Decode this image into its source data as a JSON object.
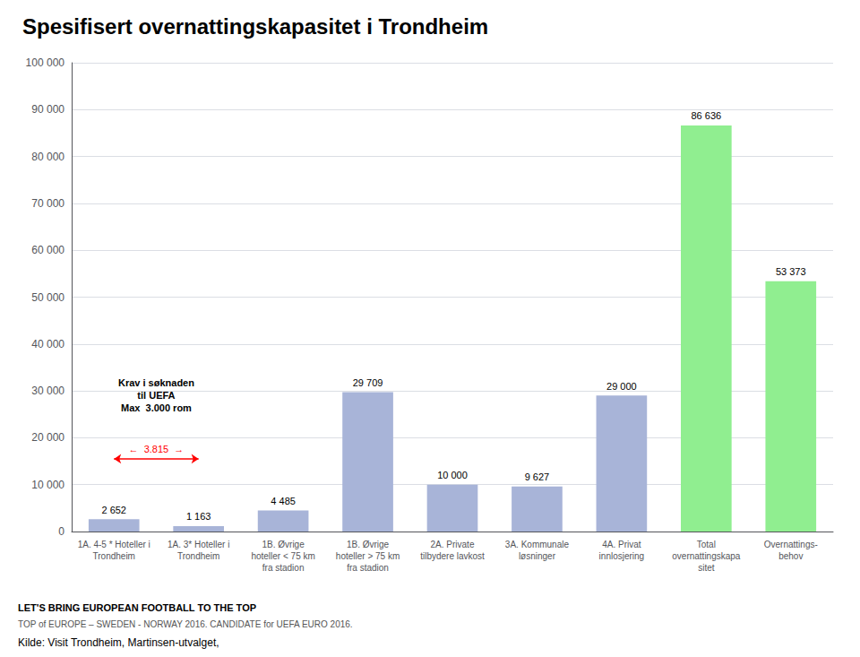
{
  "chart_data": {
    "type": "bar",
    "title": "Spesifisert overnattingskapasitet i Trondheim",
    "categories": [
      "1A. 4-5 * Hoteller i\nTrondheim",
      "1A. 3* Hoteller i\nTrondheim",
      "1B. Øvrige\nhoteller < 75 km\nfra stadion",
      "1B. Øvrige\nhoteller > 75 km\nfra stadion",
      "2A. Private\ntilbydere lavkost",
      "3A. Kommunale\nløsninger",
      "4A. Privat\ninnlosjering",
      "Total\novernattingskapa\nsitet",
      "Overnattings-\nbehov"
    ],
    "values": [
      2652,
      1163,
      4485,
      29709,
      10000,
      9627,
      29000,
      86636,
      53373
    ],
    "value_labels": [
      "2 652",
      "1 163",
      "4 485",
      "29 709",
      "10 000",
      "9 627",
      "29 000",
      "86 636",
      "53 373"
    ],
    "colors": [
      "#a8b4d8",
      "#a8b4d8",
      "#a8b4d8",
      "#a8b4d8",
      "#a8b4d8",
      "#a8b4d8",
      "#a8b4d8",
      "#90ee90",
      "#90ee90"
    ],
    "data_labels": true,
    "ylim": [
      0,
      100000
    ],
    "yticks": [
      0,
      {
        "value": 10000,
        "label": "10 000"
      },
      {
        "value": 20000,
        "label": "20 000"
      },
      {
        "value": 30000,
        "label": "30 000"
      },
      {
        "value": 40000,
        "label": "40 000"
      },
      {
        "value": 50000,
        "label": "50 000"
      },
      {
        "value": 60000,
        "label": "60 000"
      },
      {
        "value": 70000,
        "label": "70 000"
      },
      {
        "value": 80000,
        "label": "80 000"
      },
      {
        "value": 90000,
        "label": "90 000"
      },
      {
        "value": 100000,
        "label": "100 000"
      }
    ],
    "grid": true,
    "annotations": [
      {
        "text": "Krav i søknaden\ntil UEFA\nMax  3.000 rom",
        "y": 29000
      }
    ],
    "arrow": {
      "text": "←  3.815  →",
      "y": 15500,
      "color": "red"
    },
    "source": "Kilde: Visit Trondheim, Martinsen-utvalget,",
    "footnotes": [
      "LET'S BRING EUROPEAN FOOTBALL TO THE TOP",
      "TOP of EUROPE – SWEDEN - NORWAY 2016. CANDIDATE for UEFA EURO 2016."
    ]
  }
}
